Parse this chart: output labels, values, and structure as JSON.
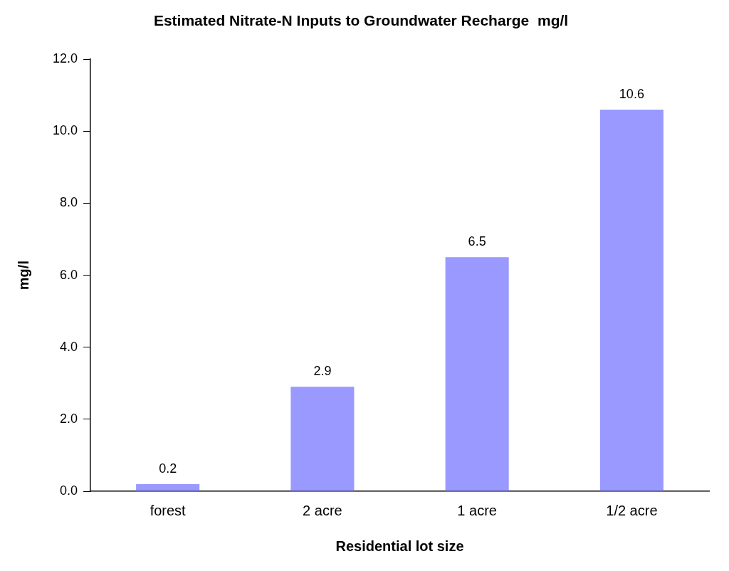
{
  "chart_data": {
    "type": "bar",
    "title": "Estimated Nitrate-N Inputs to Groundwater Recharge  mg/l",
    "xlabel": "Residential lot size",
    "ylabel": "mg/l",
    "categories": [
      "forest",
      "2 acre",
      "1 acre",
      "1/2 acre"
    ],
    "values": [
      0.2,
      2.9,
      6.5,
      10.6
    ],
    "color": "#9999ff",
    "ylim": [
      0,
      12
    ],
    "yticks": [
      {
        "value": 0,
        "label": "0.0"
      },
      {
        "value": 2,
        "label": "2.0"
      },
      {
        "value": 4,
        "label": "4.0"
      },
      {
        "value": 6,
        "label": "6.0"
      },
      {
        "value": 8,
        "label": "8.0"
      },
      {
        "value": 10,
        "label": "10.0"
      },
      {
        "value": 12,
        "label": "12.0"
      }
    ],
    "grid": false,
    "legend": false,
    "data_labels": true
  }
}
